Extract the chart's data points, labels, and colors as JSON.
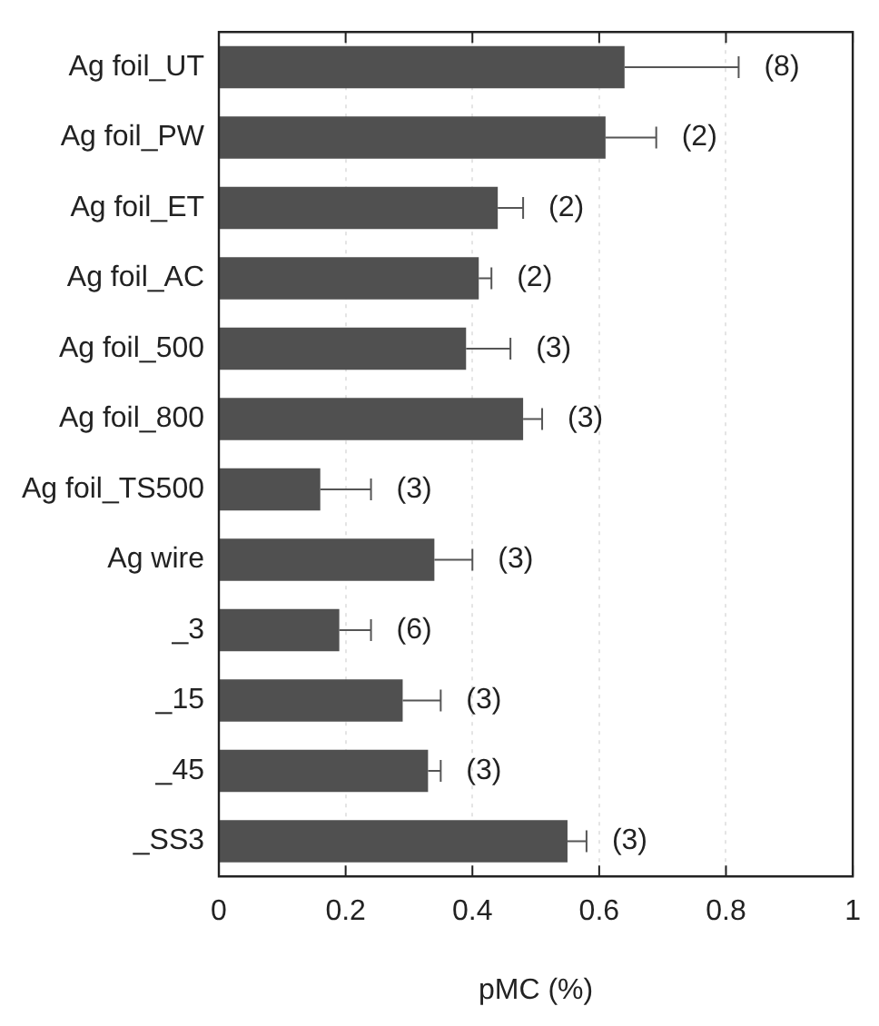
{
  "chart_data": {
    "type": "bar",
    "orientation": "horizontal",
    "xlabel": "pMC (%)",
    "categories": [
      "Ag foil_UT",
      "Ag foil_PW",
      "Ag foil_ET",
      "Ag foil_AC",
      "Ag foil_500",
      "Ag foil_800",
      "Ag foil_TS500",
      "Ag wire",
      "_3",
      "_15",
      "_45",
      "_SS3"
    ],
    "values": [
      0.64,
      0.61,
      0.44,
      0.41,
      0.39,
      0.48,
      0.16,
      0.34,
      0.19,
      0.29,
      0.33,
      0.55
    ],
    "errors": [
      [
        0.64,
        0.82
      ],
      [
        0.61,
        0.69
      ],
      [
        0.44,
        0.48
      ],
      [
        0.41,
        0.43
      ],
      [
        0.39,
        0.46
      ],
      [
        0.48,
        0.51
      ],
      [
        0.16,
        0.24
      ],
      [
        0.34,
        0.4
      ],
      [
        0.19,
        0.24
      ],
      [
        0.29,
        0.35
      ],
      [
        0.33,
        0.35
      ],
      [
        0.55,
        0.58
      ]
    ],
    "annotations": [
      {
        "text": "(8)",
        "x": 0.82,
        "y": "Ag foil_UT"
      },
      {
        "text": "(2)",
        "x": 0.69,
        "y": "Ag foil_PW"
      },
      {
        "text": "(2)",
        "x": 0.48,
        "y": "Ag foil_ET"
      },
      {
        "text": "(2)",
        "x": 0.43,
        "y": "Ag foil_AC"
      },
      {
        "text": "(3)",
        "x": 0.46,
        "y": "Ag foil_500"
      },
      {
        "text": "(3)",
        "x": 0.51,
        "y": "Ag foil_800"
      },
      {
        "text": "(3)",
        "x": 0.24,
        "y": "Ag foil_TS500"
      },
      {
        "text": "(3)",
        "x": 0.4,
        "y": "Ag wire"
      },
      {
        "text": "(6)",
        "x": 0.24,
        "y": "_3"
      },
      {
        "text": "(3)",
        "x": 0.35,
        "y": "_15"
      },
      {
        "text": "(3)",
        "x": 0.35,
        "y": "_45"
      },
      {
        "text": "(3)",
        "x": 0.58,
        "y": "_SS3"
      }
    ],
    "color": "#505050",
    "xlim": [
      0,
      1
    ],
    "xticks": [
      0,
      0.2,
      0.4,
      0.6,
      0.8,
      1
    ],
    "grid": "x",
    "legend": false
  }
}
